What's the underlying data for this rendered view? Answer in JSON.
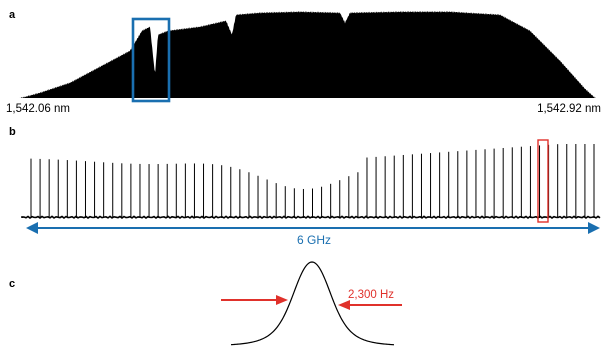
{
  "panels": {
    "a": {
      "label": "a",
      "x_left_label": "1,542.06 nm",
      "x_right_label": "1,542.92 nm"
    },
    "b": {
      "label": "b",
      "span_label": "6 GHz"
    },
    "c": {
      "label": "c",
      "linewidth_label": "2,300 Hz"
    }
  },
  "colors": {
    "highlight_blue": "#1a6fb0",
    "highlight_red": "#e0312b",
    "spectrum": "#000000"
  }
}
